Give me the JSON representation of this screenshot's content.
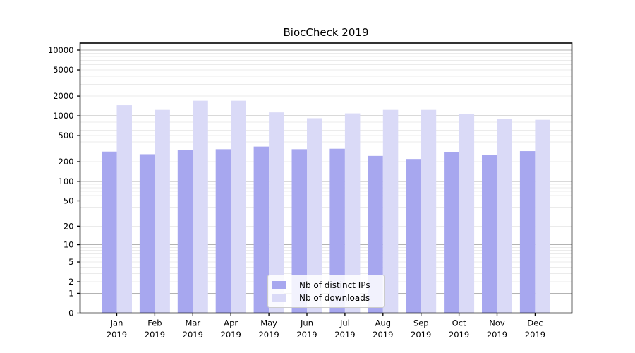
{
  "title": "BiocCheck 2019",
  "chart_data": {
    "type": "bar",
    "title": "BiocCheck 2019",
    "categories": [
      "Jan",
      "Feb",
      "Mar",
      "Apr",
      "May",
      "Jun",
      "Jul",
      "Aug",
      "Sep",
      "Oct",
      "Nov",
      "Dec"
    ],
    "year_label": "2019",
    "series": [
      {
        "name": "Nb of distinct IPs",
        "color": "#a7a7ef",
        "values": [
          285,
          260,
          300,
          310,
          340,
          310,
          315,
          245,
          220,
          280,
          255,
          290
        ]
      },
      {
        "name": "Nb of downloads",
        "color": "#dadaf7",
        "values": [
          1450,
          1230,
          1700,
          1700,
          1130,
          920,
          1090,
          1230,
          1230,
          1060,
          900,
          870
        ]
      }
    ],
    "xlabel": "",
    "ylabel": "",
    "yscale": "log(value+1)",
    "yticks": [
      0,
      1,
      2,
      5,
      10,
      20,
      50,
      100,
      200,
      500,
      1000,
      2000,
      5000,
      10000
    ],
    "ylim": [
      0,
      12800
    ],
    "grid": {
      "major_at": [
        1,
        10,
        100,
        1000,
        10000
      ],
      "minor": "2-9 per decade",
      "major_color": "#b3b3b3",
      "minor_color": "#ebebeb"
    },
    "legend": {
      "position": "lower center",
      "border_color": "#cccccc",
      "background": "#ffffff"
    },
    "colors": {
      "axis": "#000000",
      "tick_label": "#000000",
      "title": "#000000"
    }
  }
}
